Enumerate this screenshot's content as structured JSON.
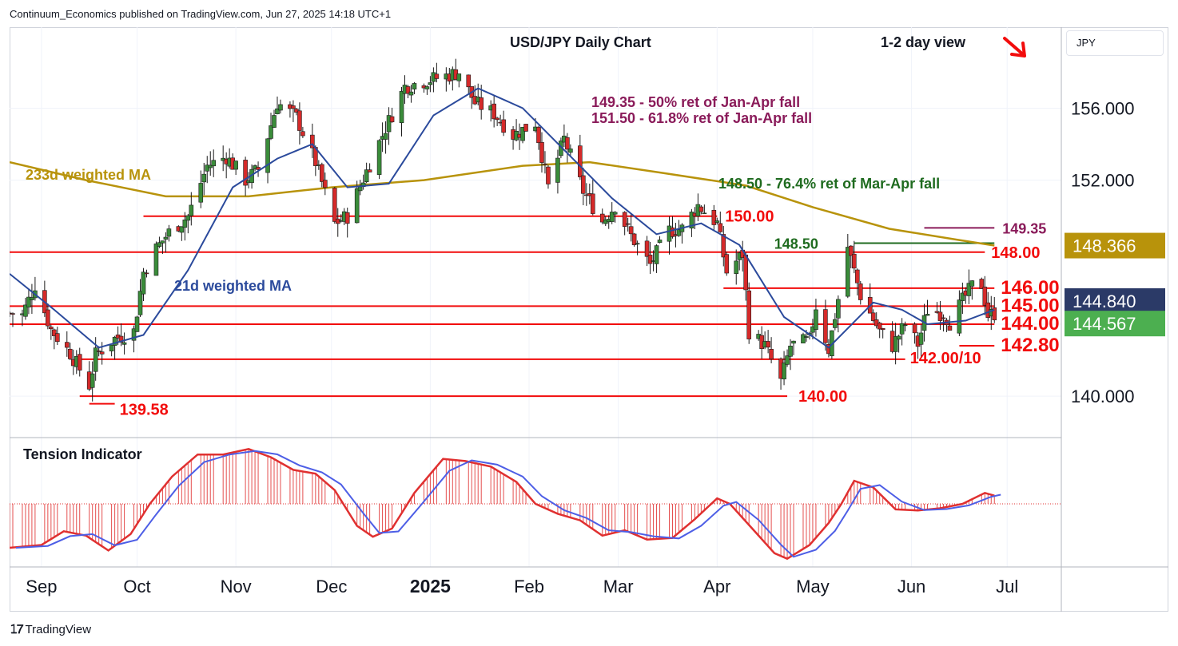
{
  "header": {
    "published": "Continuum_Economics published on TradingView.com, Jun 27, 2025 14:18 UTC+1"
  },
  "footer": {
    "brand": "TradingView",
    "logo_icon": "tradingview-logo-icon"
  },
  "colors": {
    "support_resistance": "#f20c0c",
    "ma21": "#2b4a9c",
    "ma233": "#b8930b",
    "fib_purple": "#8a1b5a",
    "fib_green": "#1f6b1f",
    "bull_candle": "#3a8c3a",
    "bear_candle": "#d52a2a",
    "tension_red": "#e03030",
    "tension_blue": "#4d5ee6",
    "badge_gold": "#b8930b",
    "badge_navy": "#2b3a67",
    "badge_green": "#4caf50"
  },
  "chart_data": [
    {
      "type": "candlestick",
      "title": "USD/JPY Daily Chart",
      "view_label": "1-2 day view",
      "view_direction": "down",
      "axis_currency": "JPY",
      "x_ticks": [
        "Sep",
        "Oct",
        "Nov",
        "Dec",
        "2025",
        "Feb",
        "Mar",
        "Apr",
        "May",
        "Jun",
        "Jul"
      ],
      "y_ticks": [
        "140.000",
        "144.000",
        "152.000",
        "156.000"
      ],
      "ylim": [
        137.7,
        160.5
      ],
      "x_range": [
        "2024-08-22",
        "2025-07-18"
      ],
      "series_points": "date, close (approximate daily path)",
      "close_path": [
        [
          "2024-08-26",
          144.5
        ],
        [
          "2024-08-30",
          146.2
        ],
        [
          "2024-09-04",
          143.7
        ],
        [
          "2024-09-10",
          142.4
        ],
        [
          "2024-09-16",
          140.6
        ],
        [
          "2024-09-18",
          142.3
        ],
        [
          "2024-09-24",
          143.2
        ],
        [
          "2024-09-30",
          143.6
        ],
        [
          "2024-10-03",
          146.9
        ],
        [
          "2024-10-07",
          148.2
        ],
        [
          "2024-10-11",
          149.1
        ],
        [
          "2024-10-17",
          150.0
        ],
        [
          "2024-10-23",
          152.8
        ],
        [
          "2024-10-29",
          153.3
        ],
        [
          "2024-11-04",
          152.0
        ],
        [
          "2024-11-08",
          152.6
        ],
        [
          "2024-11-14",
          156.3
        ],
        [
          "2024-11-20",
          155.5
        ],
        [
          "2024-11-26",
          153.0
        ],
        [
          "2024-12-02",
          149.6
        ],
        [
          "2024-12-06",
          150.0
        ],
        [
          "2024-12-12",
          152.5
        ],
        [
          "2024-12-18",
          154.9
        ],
        [
          "2024-12-24",
          157.2
        ],
        [
          "2024-12-30",
          157.5
        ],
        [
          "2025-01-06",
          157.8
        ],
        [
          "2025-01-10",
          158.0
        ],
        [
          "2025-01-15",
          156.3
        ],
        [
          "2025-01-21",
          155.7
        ],
        [
          "2025-01-27",
          154.5
        ],
        [
          "2025-02-03",
          155.2
        ],
        [
          "2025-02-07",
          151.6
        ],
        [
          "2025-02-12",
          154.3
        ],
        [
          "2025-02-18",
          151.4
        ],
        [
          "2025-02-24",
          149.7
        ],
        [
          "2025-02-28",
          150.6
        ],
        [
          "2025-03-05",
          148.9
        ],
        [
          "2025-03-11",
          147.3
        ],
        [
          "2025-03-17",
          149.2
        ],
        [
          "2025-03-21",
          149.3
        ],
        [
          "2025-03-26",
          150.6
        ],
        [
          "2025-04-01",
          149.6
        ],
        [
          "2025-04-04",
          146.9
        ],
        [
          "2025-04-09",
          147.9
        ],
        [
          "2025-04-11",
          143.6
        ],
        [
          "2025-04-16",
          142.8
        ],
        [
          "2025-04-21",
          140.8
        ],
        [
          "2025-04-24",
          142.8
        ],
        [
          "2025-04-30",
          143.1
        ],
        [
          "2025-05-02",
          145.0
        ],
        [
          "2025-05-06",
          142.6
        ],
        [
          "2025-05-09",
          145.4
        ],
        [
          "2025-05-12",
          148.3
        ],
        [
          "2025-05-16",
          145.6
        ],
        [
          "2025-05-22",
          143.6
        ],
        [
          "2025-05-26",
          142.8
        ],
        [
          "2025-05-30",
          144.0
        ],
        [
          "2025-06-03",
          142.9
        ],
        [
          "2025-06-06",
          144.8
        ],
        [
          "2025-06-11",
          144.6
        ],
        [
          "2025-06-13",
          144.1
        ],
        [
          "2025-06-17",
          145.3
        ],
        [
          "2025-06-20",
          146.1
        ],
        [
          "2025-06-23",
          146.2
        ],
        [
          "2025-06-25",
          144.5
        ],
        [
          "2025-06-27",
          144.6
        ]
      ],
      "ma21_path": [
        [
          "2024-08-22",
          146.8
        ],
        [
          "2024-09-05",
          144.8
        ],
        [
          "2024-09-19",
          142.7
        ],
        [
          "2024-10-03",
          143.4
        ],
        [
          "2024-10-17",
          147.0
        ],
        [
          "2024-10-31",
          151.6
        ],
        [
          "2024-11-14",
          153.2
        ],
        [
          "2024-11-25",
          154.0
        ],
        [
          "2024-12-06",
          151.6
        ],
        [
          "2024-12-19",
          151.8
        ],
        [
          "2025-01-02",
          155.6
        ],
        [
          "2025-01-16",
          157.1
        ],
        [
          "2025-01-30",
          156.0
        ],
        [
          "2025-02-13",
          153.5
        ],
        [
          "2025-02-27",
          151.0
        ],
        [
          "2025-03-13",
          149.0
        ],
        [
          "2025-03-27",
          149.6
        ],
        [
          "2025-04-08",
          148.4
        ],
        [
          "2025-04-22",
          144.4
        ],
        [
          "2025-05-06",
          142.7
        ],
        [
          "2025-05-20",
          145.2
        ],
        [
          "2025-05-29",
          144.8
        ],
        [
          "2025-06-06",
          144.0
        ],
        [
          "2025-06-18",
          144.2
        ],
        [
          "2025-06-27",
          144.8
        ]
      ],
      "ma233_path": [
        [
          "2024-08-22",
          153.0
        ],
        [
          "2024-09-15",
          152.0
        ],
        [
          "2024-10-10",
          151.1
        ],
        [
          "2024-11-05",
          151.1
        ],
        [
          "2024-12-01",
          151.6
        ],
        [
          "2024-12-30",
          152.0
        ],
        [
          "2025-01-30",
          152.8
        ],
        [
          "2025-02-20",
          153.0
        ],
        [
          "2025-03-15",
          152.4
        ],
        [
          "2025-04-10",
          151.7
        ],
        [
          "2025-05-01",
          150.5
        ],
        [
          "2025-05-25",
          149.3
        ],
        [
          "2025-06-15",
          148.7
        ],
        [
          "2025-06-27",
          148.366
        ]
      ],
      "levels": [
        {
          "value": 150.0,
          "label": "150.00",
          "from": "2024-10-03",
          "to": "2025-04-01"
        },
        {
          "value": 148.0,
          "label": "148.00",
          "from": "2024-08-22",
          "to": "2025-06-24"
        },
        {
          "value": 146.0,
          "label": "146.00",
          "from": "2025-04-03",
          "to": "2025-06-27"
        },
        {
          "value": 145.0,
          "label": "145.00",
          "from": "2024-08-22",
          "to": "2025-06-27"
        },
        {
          "value": 144.0,
          "label": "144.00",
          "from": "2024-08-22",
          "to": "2025-06-27"
        },
        {
          "value": 142.8,
          "label": "142.80",
          "from": "2025-06-16",
          "to": "2025-06-27"
        },
        {
          "value": 142.05,
          "label": "142.00/10",
          "from": "2024-09-12",
          "to": "2025-05-30"
        },
        {
          "value": 140.0,
          "label": "140.00",
          "from": "2024-09-13",
          "to": "2025-04-23"
        },
        {
          "value": 139.58,
          "label": "139.58",
          "from": "2024-09-16",
          "to": "2024-09-24"
        }
      ],
      "fib_lines": [
        {
          "value": 148.5,
          "label": "148.50",
          "from": "2025-05-14",
          "to": "2025-06-27",
          "color_key": "fib_green"
        },
        {
          "value": 149.35,
          "label": "149.35",
          "from": "2025-06-05",
          "to": "2025-06-27",
          "color_key": "fib_purple"
        }
      ],
      "annotations": [
        {
          "text": "149.35 - 50% ret of Jan-Apr fall",
          "color_key": "fib_purple"
        },
        {
          "text": "151.50 - 61.8% ret of Jan-Apr fall",
          "color_key": "fib_purple"
        },
        {
          "text": "148.50 - 76.4% ret of Mar-Apr fall",
          "color_key": "fib_green"
        },
        {
          "text": "233d weighted MA",
          "color_key": "ma233"
        },
        {
          "text": "21d weighted MA",
          "color_key": "ma21"
        }
      ],
      "badges": [
        {
          "value": "148.366",
          "color_key": "badge_gold"
        },
        {
          "value": "144.840",
          "color_key": "badge_navy"
        },
        {
          "value": "144.567",
          "color_key": "badge_green"
        }
      ]
    },
    {
      "type": "area",
      "title": "Tension Indicator",
      "baseline": 0,
      "ylim": [
        -1.15,
        1.15
      ],
      "values_path": [
        [
          "2024-08-22",
          -0.8
        ],
        [
          "2024-09-01",
          -0.75
        ],
        [
          "2024-09-08",
          -0.5
        ],
        [
          "2024-09-15",
          -0.58
        ],
        [
          "2024-09-22",
          -0.85
        ],
        [
          "2024-09-29",
          -0.55
        ],
        [
          "2024-10-05",
          0.0
        ],
        [
          "2024-10-12",
          0.5
        ],
        [
          "2024-10-20",
          0.9
        ],
        [
          "2024-10-28",
          0.9
        ],
        [
          "2024-11-05",
          1.0
        ],
        [
          "2024-11-12",
          0.85
        ],
        [
          "2024-11-19",
          0.62
        ],
        [
          "2024-11-26",
          0.55
        ],
        [
          "2024-12-02",
          0.25
        ],
        [
          "2024-12-09",
          -0.4
        ],
        [
          "2024-12-14",
          -0.6
        ],
        [
          "2024-12-20",
          -0.45
        ],
        [
          "2024-12-27",
          0.2
        ],
        [
          "2025-01-05",
          0.82
        ],
        [
          "2025-01-12",
          0.78
        ],
        [
          "2025-01-20",
          0.68
        ],
        [
          "2025-01-28",
          0.4
        ],
        [
          "2025-02-03",
          0.0
        ],
        [
          "2025-02-10",
          -0.18
        ],
        [
          "2025-02-17",
          -0.3
        ],
        [
          "2025-02-24",
          -0.58
        ],
        [
          "2025-03-03",
          -0.48
        ],
        [
          "2025-03-10",
          -0.65
        ],
        [
          "2025-03-18",
          -0.62
        ],
        [
          "2025-03-25",
          -0.28
        ],
        [
          "2025-04-01",
          0.1
        ],
        [
          "2025-04-05",
          0.0
        ],
        [
          "2025-04-12",
          -0.45
        ],
        [
          "2025-04-19",
          -0.9
        ],
        [
          "2025-04-23",
          -1.0
        ],
        [
          "2025-04-30",
          -0.75
        ],
        [
          "2025-05-06",
          -0.35
        ],
        [
          "2025-05-10",
          0.0
        ],
        [
          "2025-05-14",
          0.42
        ],
        [
          "2025-05-20",
          0.3
        ],
        [
          "2025-05-27",
          -0.1
        ],
        [
          "2025-06-03",
          -0.12
        ],
        [
          "2025-06-10",
          -0.08
        ],
        [
          "2025-06-17",
          0.0
        ],
        [
          "2025-06-24",
          0.2
        ],
        [
          "2025-06-27",
          0.15
        ]
      ]
    }
  ]
}
